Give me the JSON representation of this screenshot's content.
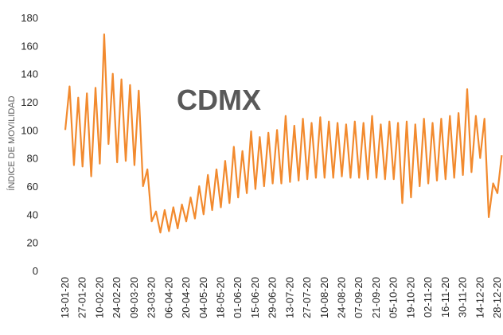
{
  "chart_data": {
    "type": "line",
    "annotation": "CDMX",
    "y_label": "ÍNDICE DE MOVILIDAD",
    "categories": [
      "13-01-20",
      null,
      null,
      null,
      "27-01-20",
      null,
      null,
      null,
      "10-02-20",
      null,
      null,
      null,
      "24-02-20",
      null,
      null,
      null,
      "09-03-20",
      null,
      null,
      null,
      "23-03-20",
      null,
      null,
      null,
      "06-04-20",
      null,
      null,
      null,
      "20-04-20",
      null,
      null,
      null,
      "04-05-20",
      null,
      null,
      null,
      "18-05-20",
      null,
      null,
      null,
      "01-06-20",
      null,
      null,
      null,
      "15-06-20",
      null,
      null,
      null,
      "29-06-20",
      null,
      null,
      null,
      "13-07-20",
      null,
      null,
      null,
      "27-07-20",
      null,
      null,
      null,
      "10-08-20",
      null,
      null,
      null,
      "24-08-20",
      null,
      null,
      null,
      "07-09-20",
      null,
      null,
      null,
      "21-09-20",
      null,
      null,
      null,
      "05-10-20",
      null,
      null,
      null,
      "19-10-20",
      null,
      null,
      null,
      "02-11-20",
      null,
      null,
      null,
      "16-11-20",
      null,
      null,
      null,
      "30-11-20",
      null,
      null,
      null,
      "14-12-20",
      null,
      null,
      null,
      "28-12-20",
      null
    ],
    "series": [
      {
        "name": "CDMX",
        "color": "#f28a2e",
        "values": [
          100,
          131,
          75,
          123,
          74,
          126,
          67,
          130,
          76,
          168,
          90,
          140,
          77,
          136,
          78,
          132,
          75,
          128,
          60,
          72,
          35,
          42,
          27,
          43,
          28,
          45,
          30,
          47,
          35,
          52,
          37,
          60,
          40,
          68,
          43,
          72,
          45,
          78,
          48,
          88,
          52,
          85,
          55,
          99,
          58,
          95,
          60,
          98,
          62,
          100,
          62,
          110,
          63,
          103,
          64,
          108,
          65,
          105,
          66,
          109,
          66,
          106,
          66,
          105,
          67,
          104,
          66,
          106,
          66,
          105,
          65,
          110,
          66,
          104,
          65,
          106,
          65,
          105,
          48,
          106,
          52,
          104,
          60,
          108,
          62,
          105,
          64,
          108,
          65,
          110,
          66,
          112,
          68,
          129,
          70,
          110,
          80,
          108,
          38,
          62,
          55,
          82
        ]
      }
    ],
    "ylim": [
      0,
      180
    ],
    "yticks": [
      0,
      20,
      40,
      60,
      80,
      100,
      120,
      140,
      160,
      180
    ],
    "grid": false
  }
}
